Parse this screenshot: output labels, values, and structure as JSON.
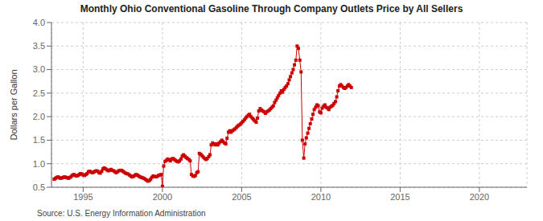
{
  "chart_data": {
    "type": "line",
    "title": "Monthly Ohio Conventional Gasoline Through Company Outlets Price by All Sellers",
    "ylabel": "Dollars per Gallon",
    "annotations": [
      "Source: U.S. Energy Information Administration"
    ],
    "color": "#CC0000",
    "marker": "square",
    "line_style": "solid",
    "grid": true,
    "xlim": [
      1993.0,
      2023.0
    ],
    "ylim": [
      0.5,
      4.0
    ],
    "xticks": [
      1995,
      2000,
      2005,
      2010,
      2015,
      2020
    ],
    "yticks": [
      0.5,
      {
        "value": 1.0,
        "label": "1.0"
      },
      1.5,
      {
        "value": 2.0,
        "label": "2.0"
      },
      2.5,
      {
        "value": 3.0,
        "label": "3.0"
      },
      3.5,
      {
        "value": 4.0,
        "label": "4.0"
      }
    ],
    "x": [
      1993.17,
      1993.25,
      1993.33,
      1993.42,
      1993.5,
      1993.58,
      1993.67,
      1993.75,
      1993.83,
      1993.92,
      1994.0,
      1994.08,
      1994.17,
      1994.25,
      1994.33,
      1994.42,
      1994.5,
      1994.58,
      1994.67,
      1994.75,
      1994.83,
      1994.92,
      1995.0,
      1995.08,
      1995.17,
      1995.25,
      1995.33,
      1995.42,
      1995.5,
      1995.58,
      1995.67,
      1995.75,
      1995.83,
      1995.92,
      1996.0,
      1996.08,
      1996.17,
      1996.25,
      1996.33,
      1996.42,
      1996.5,
      1996.58,
      1996.67,
      1996.75,
      1996.83,
      1996.92,
      1997.0,
      1997.08,
      1997.17,
      1997.25,
      1997.33,
      1997.42,
      1997.5,
      1997.58,
      1997.67,
      1997.75,
      1997.83,
      1997.92,
      1998.0,
      1998.08,
      1998.17,
      1998.25,
      1998.33,
      1998.42,
      1998.5,
      1998.58,
      1998.67,
      1998.75,
      1998.83,
      1998.92,
      1999.0,
      1999.08,
      1999.17,
      1999.25,
      1999.33,
      1999.42,
      1999.5,
      1999.58,
      1999.67,
      1999.75,
      1999.83,
      1999.92,
      2000.0,
      2000.08,
      2000.17,
      2000.25,
      2000.33,
      2000.42,
      2000.5,
      2000.58,
      2000.67,
      2000.75,
      2000.83,
      2000.92,
      2001.0,
      2001.08,
      2001.17,
      2001.25,
      2001.33,
      2001.42,
      2001.5,
      2001.58,
      2001.67,
      2001.75,
      2001.83,
      2001.92,
      2002.0,
      2002.08,
      2002.17,
      2002.25,
      2002.33,
      2002.42,
      2002.5,
      2002.58,
      2002.67,
      2002.75,
      2002.83,
      2002.92,
      2003.0,
      2003.08,
      2003.17,
      2003.25,
      2003.33,
      2003.42,
      2003.5,
      2003.58,
      2003.67,
      2003.75,
      2003.83,
      2003.92,
      2004.0,
      2004.08,
      2004.17,
      2004.25,
      2004.33,
      2004.42,
      2004.5,
      2004.58,
      2004.67,
      2004.75,
      2004.83,
      2004.92,
      2005.0,
      2005.08,
      2005.17,
      2005.25,
      2005.33,
      2005.42,
      2005.5,
      2005.58,
      2005.67,
      2005.75,
      2005.83,
      2005.92,
      2006.0,
      2006.08,
      2006.17,
      2006.25,
      2006.33,
      2006.42,
      2006.5,
      2006.58,
      2006.67,
      2006.75,
      2006.83,
      2006.92,
      2007.0,
      2007.08,
      2007.17,
      2007.25,
      2007.33,
      2007.42,
      2007.5,
      2007.58,
      2007.67,
      2007.75,
      2007.83,
      2007.92,
      2008.0,
      2008.08,
      2008.17,
      2008.25,
      2008.33,
      2008.42,
      2008.5,
      2008.58,
      2008.67,
      2008.75,
      2008.83,
      2008.92,
      2009.0,
      2009.08,
      2009.17,
      2009.25,
      2009.33,
      2009.42,
      2009.5,
      2009.58,
      2009.67,
      2009.75,
      2009.83,
      2009.92,
      2010.0,
      2010.08,
      2010.17,
      2010.25,
      2010.33,
      2010.42,
      2010.5,
      2010.58,
      2010.67,
      2010.75,
      2010.83,
      2010.92,
      2011.0,
      2011.08,
      2011.17,
      2011.25,
      2011.33,
      2011.42,
      2011.5,
      2011.58,
      2011.67,
      2011.75,
      2011.83,
      2011.92
    ],
    "values": [
      0.67,
      0.69,
      0.71,
      0.72,
      0.7,
      0.69,
      0.7,
      0.71,
      0.72,
      0.71,
      0.7,
      0.69,
      0.71,
      0.73,
      0.76,
      0.77,
      0.75,
      0.74,
      0.75,
      0.77,
      0.79,
      0.78,
      0.76,
      0.75,
      0.77,
      0.79,
      0.83,
      0.84,
      0.82,
      0.81,
      0.82,
      0.84,
      0.85,
      0.84,
      0.81,
      0.8,
      0.84,
      0.89,
      0.91,
      0.89,
      0.87,
      0.85,
      0.86,
      0.88,
      0.86,
      0.85,
      0.83,
      0.81,
      0.83,
      0.85,
      0.86,
      0.86,
      0.84,
      0.82,
      0.8,
      0.79,
      0.78,
      0.76,
      0.74,
      0.72,
      0.73,
      0.75,
      0.77,
      0.76,
      0.74,
      0.72,
      0.71,
      0.7,
      0.69,
      0.67,
      0.65,
      0.63,
      0.64,
      0.67,
      0.71,
      0.74,
      0.73,
      0.72,
      0.73,
      0.75,
      0.76,
      0.77,
      0.52,
      0.95,
      1.05,
      1.07,
      1.1,
      1.08,
      1.06,
      1.1,
      1.11,
      1.09,
      1.07,
      1.05,
      1.04,
      1.06,
      1.1,
      1.16,
      1.19,
      1.16,
      1.13,
      1.11,
      1.09,
      1.06,
      0.77,
      0.74,
      0.73,
      0.75,
      0.81,
      0.83,
      1.22,
      1.2,
      1.17,
      1.14,
      1.11,
      1.09,
      1.11,
      1.15,
      1.19,
      1.4,
      1.44,
      1.42,
      1.4,
      1.42,
      1.4,
      1.44,
      1.47,
      1.5,
      1.47,
      1.44,
      1.42,
      1.54,
      1.67,
      1.7,
      1.67,
      1.7,
      1.72,
      1.74,
      1.77,
      1.8,
      1.82,
      1.84,
      1.87,
      1.9,
      1.93,
      1.97,
      2.0,
      2.03,
      2.05,
      2.0,
      1.97,
      1.94,
      1.91,
      1.88,
      1.97,
      2.12,
      2.17,
      2.14,
      2.12,
      2.1,
      2.07,
      2.1,
      2.12,
      2.14,
      2.17,
      2.2,
      2.23,
      2.3,
      2.35,
      2.4,
      2.45,
      2.5,
      2.55,
      2.52,
      2.58,
      2.62,
      2.65,
      2.7,
      2.78,
      2.85,
      2.93,
      3.0,
      3.1,
      3.2,
      3.5,
      3.45,
      3.2,
      2.95,
      1.5,
      1.12,
      1.42,
      1.55,
      1.65,
      1.75,
      1.85,
      1.95,
      2.05,
      2.15,
      2.2,
      2.25,
      2.23,
      2.1,
      2.08,
      2.18,
      2.22,
      2.25,
      2.2,
      2.18,
      2.15,
      2.2,
      2.22,
      2.24,
      2.28,
      2.32,
      2.42,
      2.55,
      2.65,
      2.68,
      2.65,
      2.62,
      2.6,
      2.62,
      2.65,
      2.68,
      2.65,
      2.62
    ]
  }
}
